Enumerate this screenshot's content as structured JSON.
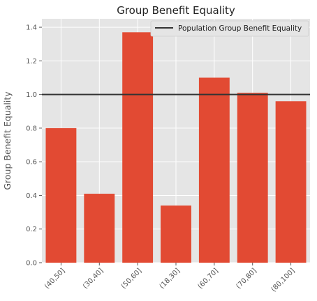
{
  "chart_data": {
    "type": "bar",
    "title": "Group Benefit Equality",
    "xlabel": "",
    "ylabel": "Group Benefit Equality",
    "categories": [
      "(40,50]",
      "(30,40]",
      "(50,60]",
      "(18,30]",
      "(60,70]",
      "(70,80]",
      "(80,100]"
    ],
    "values": [
      0.8,
      0.41,
      1.37,
      0.34,
      1.1,
      1.01,
      0.96
    ],
    "ylim": [
      0,
      1.45
    ],
    "yticks": [
      0.0,
      0.2,
      0.4,
      0.6,
      0.8,
      1.0,
      1.2,
      1.4
    ],
    "ytick_labels": [
      "0.0",
      "0.2",
      "0.4",
      "0.6",
      "0.8",
      "1.0",
      "1.2",
      "1.4"
    ],
    "reference_line": {
      "value": 1.0,
      "label": "Population Group Benefit Equality"
    },
    "grid": true,
    "legend": {
      "position": "top-right"
    },
    "colors": {
      "bar": "#e24a33",
      "reference_line": "#333333",
      "plot_background": "#e5e5e5",
      "grid": "#ffffff"
    }
  }
}
